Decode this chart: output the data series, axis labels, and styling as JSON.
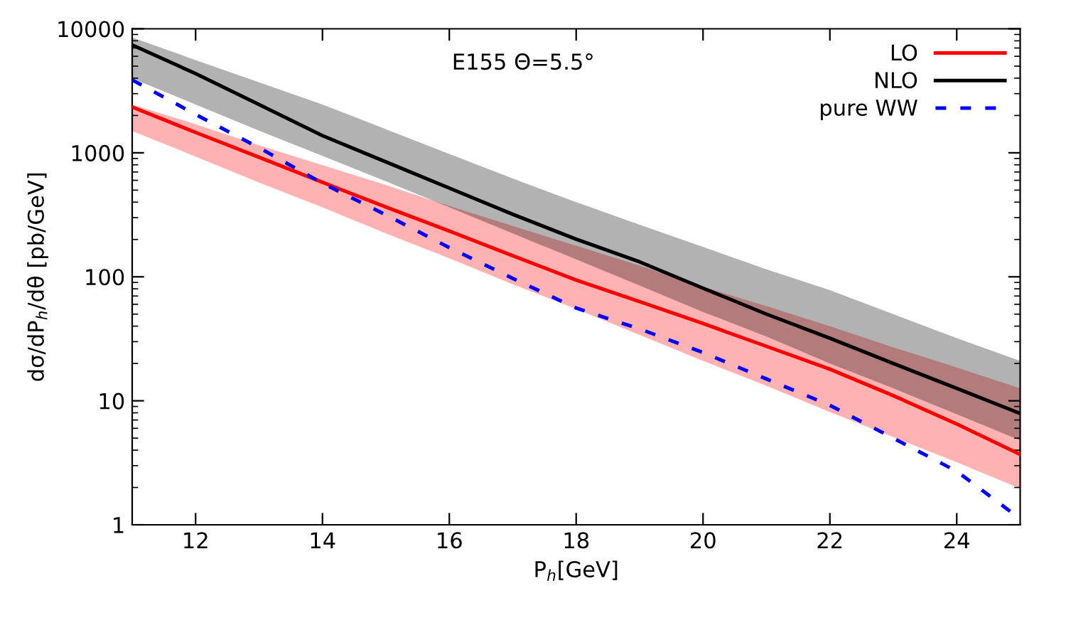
{
  "chart_data": {
    "type": "line",
    "xlabel": "P$_{h}$[GeV]",
    "ylabel": "dσ/dP$_{h}$/dθ [pb/GeV]",
    "annotations": [
      "E155 Θ=5.5°"
    ],
    "x": [
      11,
      12,
      13,
      14,
      15,
      16,
      17,
      18,
      19,
      20,
      21,
      22,
      23,
      24,
      25
    ],
    "series": [
      {
        "name": "LO",
        "color": "#ff0000",
        "line_style": "solid",
        "values": [
          2340,
          1460,
          920,
          578,
          365,
          234,
          148,
          94,
          63,
          42,
          27.5,
          18,
          11,
          6.5,
          3.7
        ],
        "upper": [
          2450,
          1700,
          1150,
          794,
          550,
          372,
          257,
          178,
          123,
          83,
          58,
          40,
          27,
          18.6,
          12.6
        ],
        "lower": [
          1500,
          933,
          575,
          363,
          224,
          141,
          87,
          55,
          34,
          21,
          13.2,
          8.1,
          5.1,
          3.2,
          1.96
        ]
      },
      {
        "name": "NLO",
        "color": "#000000",
        "line_style": "solid",
        "values": [
          7400,
          4350,
          2450,
          1375,
          845,
          519,
          319,
          201,
          132,
          81,
          50,
          32,
          20,
          12.6,
          7.9
        ],
        "upper": [
          8500,
          5600,
          3700,
          2450,
          1550,
          980,
          620,
          400,
          263,
          174,
          115,
          78,
          50,
          32,
          21
        ],
        "lower": [
          3980,
          2450,
          1510,
          944,
          589,
          363,
          224,
          138,
          85,
          52,
          33,
          20,
          12.6,
          7.8,
          4.8
        ]
      },
      {
        "name": "pure WW",
        "color": "#0000ff",
        "line_style": "dashed",
        "values": [
          3870,
          2040,
          1100,
          568,
          316,
          172,
          97,
          56,
          38,
          24.5,
          15,
          9.2,
          5.0,
          2.7,
          1.12
        ]
      }
    ],
    "xlim": [
      11,
      25
    ],
    "xticks": [
      12,
      14,
      16,
      18,
      20,
      22,
      24
    ],
    "ylim": [
      1,
      10000
    ],
    "yticks": [
      1,
      10,
      100,
      1000,
      10000
    ],
    "log": "y",
    "grid": false,
    "legend": "top right",
    "marker": "none"
  }
}
